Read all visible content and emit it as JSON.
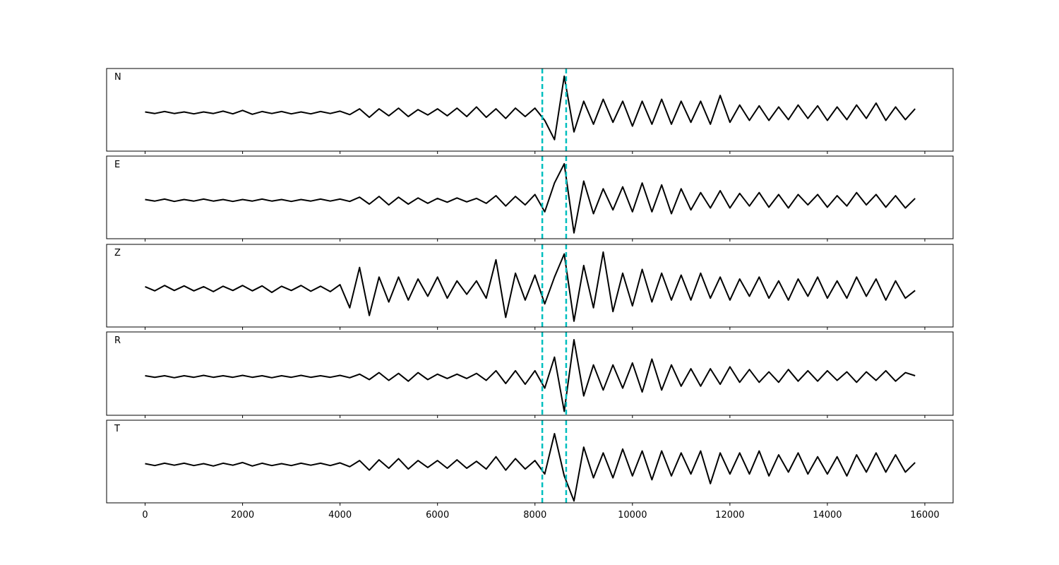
{
  "chart_data": [
    {
      "type": "line",
      "label": "N",
      "color": "#000000",
      "vline_color": "#00bfbf",
      "vlines": [
        8150,
        8640
      ],
      "xlim": [
        -790,
        16580
      ],
      "ylim": [
        -1.0,
        1.15
      ],
      "xticks": [
        0,
        2000,
        4000,
        6000,
        8000,
        10000,
        12000,
        14000,
        16000
      ],
      "x": [
        0,
        200,
        400,
        600,
        800,
        1000,
        1200,
        1400,
        1600,
        1800,
        2000,
        2200,
        2400,
        2600,
        2800,
        3000,
        3200,
        3400,
        3600,
        3800,
        4000,
        4200,
        4400,
        4600,
        4800,
        5000,
        5200,
        5400,
        5600,
        5800,
        6000,
        6200,
        6400,
        6600,
        6800,
        7000,
        7200,
        7400,
        7600,
        7800,
        8000,
        8200,
        8400,
        8600,
        8800,
        9000,
        9200,
        9400,
        9600,
        9800,
        10000,
        10200,
        10400,
        10600,
        10800,
        11000,
        11200,
        11400,
        11600,
        11800,
        12000,
        12200,
        12400,
        12600,
        12800,
        13000,
        13200,
        13400,
        13600,
        13800,
        14000,
        14200,
        14400,
        14600,
        14800,
        15000,
        15200,
        15400,
        15600,
        15800
      ],
      "values": [
        0.02,
        -0.02,
        0.03,
        -0.02,
        0.02,
        -0.03,
        0.02,
        -0.02,
        0.04,
        -0.03,
        0.06,
        -0.04,
        0.03,
        -0.02,
        0.03,
        -0.03,
        0.02,
        -0.03,
        0.03,
        -0.02,
        0.04,
        -0.05,
        0.1,
        -0.12,
        0.1,
        -0.08,
        0.12,
        -0.1,
        0.08,
        -0.06,
        0.1,
        -0.08,
        0.12,
        -0.1,
        0.15,
        -0.12,
        0.1,
        -0.15,
        0.12,
        -0.1,
        0.12,
        -0.2,
        -0.7,
        0.95,
        -0.5,
        0.3,
        -0.3,
        0.35,
        -0.25,
        0.3,
        -0.35,
        0.3,
        -0.3,
        0.35,
        -0.3,
        0.3,
        -0.25,
        0.3,
        -0.3,
        0.45,
        -0.25,
        0.2,
        -0.2,
        0.18,
        -0.2,
        0.15,
        -0.18,
        0.2,
        -0.15,
        0.18,
        -0.2,
        0.15,
        -0.18,
        0.2,
        -0.15,
        0.25,
        -0.2,
        0.15,
        -0.18,
        0.1
      ]
    },
    {
      "type": "line",
      "label": "E",
      "color": "#000000",
      "vline_color": "#00bfbf",
      "vlines": [
        8150,
        8640
      ],
      "xlim": [
        -790,
        16580
      ],
      "ylim": [
        -1.0,
        1.15
      ],
      "xticks": [
        0,
        2000,
        4000,
        6000,
        8000,
        10000,
        12000,
        14000,
        16000
      ],
      "x": [
        0,
        200,
        400,
        600,
        800,
        1000,
        1200,
        1400,
        1600,
        1800,
        2000,
        2200,
        2400,
        2600,
        2800,
        3000,
        3200,
        3400,
        3600,
        3800,
        4000,
        4200,
        4400,
        4600,
        4800,
        5000,
        5200,
        5400,
        5600,
        5800,
        6000,
        6200,
        6400,
        6600,
        6800,
        7000,
        7200,
        7400,
        7600,
        7800,
        8000,
        8200,
        8400,
        8600,
        8800,
        9000,
        9200,
        9400,
        9600,
        9800,
        10000,
        10200,
        10400,
        10600,
        10800,
        11000,
        11200,
        11400,
        11600,
        11800,
        12000,
        12200,
        12400,
        12600,
        12800,
        13000,
        13200,
        13400,
        13600,
        13800,
        14000,
        14200,
        14400,
        14600,
        14800,
        15000,
        15200,
        15400,
        15600,
        15800
      ],
      "values": [
        0.02,
        -0.02,
        0.03,
        -0.03,
        0.02,
        -0.02,
        0.03,
        -0.02,
        0.02,
        -0.03,
        0.02,
        -0.02,
        0.03,
        -0.02,
        0.02,
        -0.03,
        0.02,
        -0.02,
        0.03,
        -0.02,
        0.03,
        -0.03,
        0.08,
        -0.1,
        0.1,
        -0.12,
        0.08,
        -0.1,
        0.06,
        -0.08,
        0.05,
        -0.05,
        0.06,
        -0.04,
        0.05,
        -0.08,
        0.12,
        -0.15,
        0.1,
        -0.12,
        0.15,
        -0.3,
        0.45,
        0.95,
        -0.85,
        0.5,
        -0.35,
        0.3,
        -0.25,
        0.35,
        -0.3,
        0.45,
        -0.3,
        0.4,
        -0.35,
        0.3,
        -0.25,
        0.2,
        -0.2,
        0.25,
        -0.2,
        0.18,
        -0.15,
        0.2,
        -0.18,
        0.15,
        -0.2,
        0.15,
        -0.12,
        0.15,
        -0.18,
        0.12,
        -0.15,
        0.2,
        -0.12,
        0.15,
        -0.18,
        0.12,
        -0.2,
        0.05
      ]
    },
    {
      "type": "line",
      "label": "Z",
      "color": "#000000",
      "vline_color": "#00bfbf",
      "vlines": [
        8150,
        8640
      ],
      "xlim": [
        -790,
        16580
      ],
      "ylim": [
        -1.0,
        1.15
      ],
      "xticks": [
        0,
        2000,
        4000,
        6000,
        8000,
        10000,
        12000,
        14000,
        16000
      ],
      "x": [
        0,
        200,
        400,
        600,
        800,
        1000,
        1200,
        1400,
        1600,
        1800,
        2000,
        2200,
        2400,
        2600,
        2800,
        3000,
        3200,
        3400,
        3600,
        3800,
        4000,
        4200,
        4400,
        4600,
        4800,
        5000,
        5200,
        5400,
        5600,
        5800,
        6000,
        6200,
        6400,
        6600,
        6800,
        7000,
        7200,
        7400,
        7600,
        7800,
        8000,
        8200,
        8400,
        8600,
        8800,
        9000,
        9200,
        9400,
        9600,
        9800,
        10000,
        10200,
        10400,
        10600,
        10800,
        11000,
        11200,
        11400,
        11600,
        11800,
        12000,
        12200,
        12400,
        12600,
        12800,
        13000,
        13200,
        13400,
        13600,
        13800,
        14000,
        14200,
        14400,
        14600,
        14800,
        15000,
        15200,
        15400,
        15600,
        15800
      ],
      "values": [
        0.05,
        -0.06,
        0.08,
        -0.05,
        0.07,
        -0.06,
        0.05,
        -0.08,
        0.06,
        -0.05,
        0.08,
        -0.06,
        0.07,
        -0.1,
        0.06,
        -0.05,
        0.08,
        -0.07,
        0.06,
        -0.08,
        0.1,
        -0.5,
        0.55,
        -0.7,
        0.3,
        -0.35,
        0.3,
        -0.3,
        0.25,
        -0.2,
        0.3,
        -0.25,
        0.2,
        -0.15,
        0.2,
        -0.25,
        0.75,
        -0.75,
        0.4,
        -0.3,
        0.35,
        -0.4,
        0.3,
        0.9,
        -0.85,
        0.6,
        -0.5,
        0.95,
        -0.6,
        0.4,
        -0.45,
        0.5,
        -0.35,
        0.4,
        -0.3,
        0.35,
        -0.3,
        0.4,
        -0.25,
        0.3,
        -0.3,
        0.25,
        -0.2,
        0.3,
        -0.25,
        0.2,
        -0.3,
        0.25,
        -0.2,
        0.3,
        -0.25,
        0.2,
        -0.25,
        0.3,
        -0.2,
        0.25,
        -0.3,
        0.2,
        -0.25,
        -0.05
      ]
    },
    {
      "type": "line",
      "label": "R",
      "color": "#000000",
      "vline_color": "#00bfbf",
      "vlines": [
        8150,
        8640
      ],
      "xlim": [
        -790,
        16580
      ],
      "ylim": [
        -1.0,
        1.15
      ],
      "xticks": [
        0,
        2000,
        4000,
        6000,
        8000,
        10000,
        12000,
        14000,
        16000
      ],
      "x": [
        0,
        200,
        400,
        600,
        800,
        1000,
        1200,
        1400,
        1600,
        1800,
        2000,
        2200,
        2400,
        2600,
        2800,
        3000,
        3200,
        3400,
        3600,
        3800,
        4000,
        4200,
        4400,
        4600,
        4800,
        5000,
        5200,
        5400,
        5600,
        5800,
        6000,
        6200,
        6400,
        6600,
        6800,
        7000,
        7200,
        7400,
        7600,
        7800,
        8000,
        8200,
        8400,
        8600,
        8800,
        9000,
        9200,
        9400,
        9600,
        9800,
        10000,
        10200,
        10400,
        10600,
        10800,
        11000,
        11200,
        11400,
        11600,
        11800,
        12000,
        12200,
        12400,
        12600,
        12800,
        13000,
        13200,
        13400,
        13600,
        13800,
        14000,
        14200,
        14400,
        14600,
        14800,
        15000,
        15200,
        15400,
        15600,
        15800
      ],
      "values": [
        0.02,
        -0.02,
        0.02,
        -0.03,
        0.02,
        -0.02,
        0.03,
        -0.02,
        0.02,
        -0.02,
        0.03,
        -0.02,
        0.02,
        -0.03,
        0.02,
        -0.02,
        0.03,
        -0.02,
        0.02,
        -0.02,
        0.03,
        -0.03,
        0.06,
        -0.08,
        0.1,
        -0.1,
        0.08,
        -0.12,
        0.1,
        -0.08,
        0.06,
        -0.05,
        0.06,
        -0.05,
        0.08,
        -0.1,
        0.15,
        -0.18,
        0.15,
        -0.2,
        0.15,
        -0.3,
        0.5,
        -0.9,
        0.95,
        -0.5,
        0.3,
        -0.35,
        0.3,
        -0.3,
        0.35,
        -0.4,
        0.45,
        -0.35,
        0.3,
        -0.25,
        0.2,
        -0.25,
        0.2,
        -0.2,
        0.25,
        -0.15,
        0.18,
        -0.15,
        0.12,
        -0.15,
        0.18,
        -0.12,
        0.15,
        -0.12,
        0.15,
        -0.1,
        0.12,
        -0.15,
        0.12,
        -0.1,
        0.15,
        -0.12,
        0.1,
        0.02
      ]
    },
    {
      "type": "line",
      "label": "T",
      "color": "#000000",
      "vline_color": "#00bfbf",
      "vlines": [
        8150,
        8640
      ],
      "xlim": [
        -790,
        16580
      ],
      "ylim": [
        -1.0,
        1.15
      ],
      "xticks": [
        0,
        2000,
        4000,
        6000,
        8000,
        10000,
        12000,
        14000,
        16000
      ],
      "x": [
        0,
        200,
        400,
        600,
        800,
        1000,
        1200,
        1400,
        1600,
        1800,
        2000,
        2200,
        2400,
        2600,
        2800,
        3000,
        3200,
        3400,
        3600,
        3800,
        4000,
        4200,
        4400,
        4600,
        4800,
        5000,
        5200,
        5400,
        5600,
        5800,
        6000,
        6200,
        6400,
        6600,
        6800,
        7000,
        7200,
        7400,
        7600,
        7800,
        8000,
        8200,
        8400,
        8600,
        8800,
        9000,
        9200,
        9400,
        9600,
        9800,
        10000,
        10200,
        10400,
        10600,
        10800,
        11000,
        11200,
        11400,
        11600,
        11800,
        12000,
        12200,
        12400,
        12600,
        12800,
        13000,
        13200,
        13400,
        13600,
        13800,
        14000,
        14200,
        14400,
        14600,
        14800,
        15000,
        15200,
        15400,
        15600,
        15800
      ],
      "values": [
        0.02,
        -0.03,
        0.03,
        -0.02,
        0.03,
        -0.03,
        0.02,
        -0.04,
        0.03,
        -0.02,
        0.05,
        -0.04,
        0.03,
        -0.03,
        0.02,
        -0.03,
        0.03,
        -0.02,
        0.03,
        -0.03,
        0.04,
        -0.06,
        0.1,
        -0.15,
        0.12,
        -0.1,
        0.15,
        -0.12,
        0.1,
        -0.08,
        0.1,
        -0.1,
        0.12,
        -0.1,
        0.08,
        -0.12,
        0.2,
        -0.15,
        0.15,
        -0.12,
        0.1,
        -0.25,
        0.8,
        -0.3,
        -0.95,
        0.45,
        -0.35,
        0.3,
        -0.35,
        0.4,
        -0.3,
        0.35,
        -0.4,
        0.35,
        -0.3,
        0.3,
        -0.25,
        0.35,
        -0.5,
        0.3,
        -0.25,
        0.3,
        -0.25,
        0.35,
        -0.3,
        0.25,
        -0.2,
        0.3,
        -0.25,
        0.2,
        -0.25,
        0.2,
        -0.3,
        0.25,
        -0.2,
        0.3,
        -0.2,
        0.25,
        -0.2,
        0.05
      ]
    }
  ]
}
